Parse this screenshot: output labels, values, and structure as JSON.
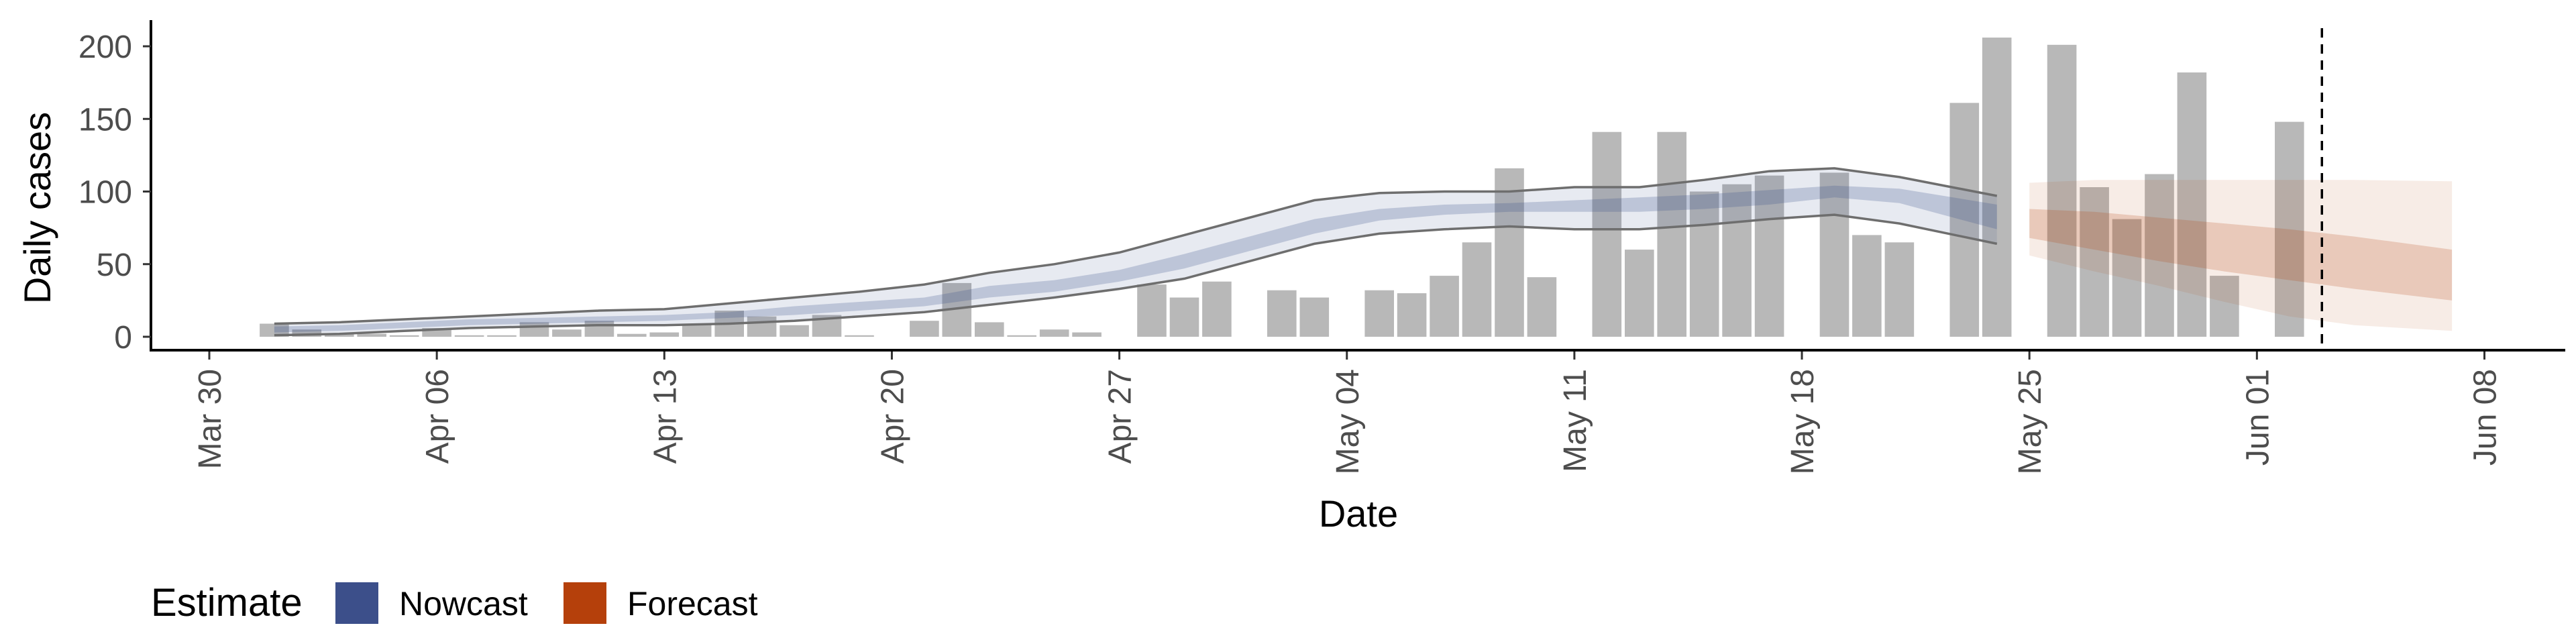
{
  "chart_data": {
    "type": "bar",
    "xlabel": "Date",
    "ylabel": "Daily cases",
    "x_axis": {
      "range": [
        "2020-03-30",
        "2020-06-09"
      ],
      "ticks": [
        {
          "date": "2020-03-30",
          "label": "Mar 30"
        },
        {
          "date": "2020-04-06",
          "label": "Apr 06"
        },
        {
          "date": "2020-04-13",
          "label": "Apr 13"
        },
        {
          "date": "2020-04-20",
          "label": "Apr 20"
        },
        {
          "date": "2020-04-27",
          "label": "Apr 27"
        },
        {
          "date": "2020-05-04",
          "label": "May 04"
        },
        {
          "date": "2020-05-11",
          "label": "May 11"
        },
        {
          "date": "2020-05-18",
          "label": "May 18"
        },
        {
          "date": "2020-05-25",
          "label": "May 25"
        },
        {
          "date": "2020-06-01",
          "label": "Jun 01"
        },
        {
          "date": "2020-06-08",
          "label": "Jun 08"
        }
      ]
    },
    "y_axis": {
      "range": [
        -20,
        220
      ],
      "ticks": [
        0,
        50,
        100,
        150,
        200
      ]
    },
    "grid": false,
    "bars": {
      "dates": [
        "2020-04-01",
        "2020-04-02",
        "2020-04-03",
        "2020-04-04",
        "2020-04-05",
        "2020-04-06",
        "2020-04-07",
        "2020-04-08",
        "2020-04-09",
        "2020-04-10",
        "2020-04-11",
        "2020-04-12",
        "2020-04-13",
        "2020-04-14",
        "2020-04-15",
        "2020-04-16",
        "2020-04-17",
        "2020-04-18",
        "2020-04-19",
        "2020-04-20",
        "2020-04-21",
        "2020-04-22",
        "2020-04-23",
        "2020-04-24",
        "2020-04-25",
        "2020-04-26",
        "2020-04-27",
        "2020-04-28",
        "2020-04-29",
        "2020-04-30",
        "2020-05-01",
        "2020-05-02",
        "2020-05-03",
        "2020-05-04",
        "2020-05-05",
        "2020-05-06",
        "2020-05-07",
        "2020-05-08",
        "2020-05-09",
        "2020-05-10",
        "2020-05-11",
        "2020-05-12",
        "2020-05-13",
        "2020-05-14",
        "2020-05-15",
        "2020-05-16",
        "2020-05-17",
        "2020-05-18",
        "2020-05-19",
        "2020-05-20",
        "2020-05-21",
        "2020-05-22",
        "2020-05-23",
        "2020-05-24",
        "2020-05-25",
        "2020-05-26",
        "2020-05-27",
        "2020-05-28",
        "2020-05-29",
        "2020-05-30",
        "2020-05-31",
        "2020-06-01",
        "2020-06-02",
        "2020-06-03"
      ],
      "values": [
        9,
        5,
        2,
        2,
        1,
        6,
        1,
        1,
        10,
        5,
        11,
        2,
        3,
        9,
        18,
        14,
        8,
        15,
        1,
        0,
        11,
        37,
        10,
        1,
        5,
        3,
        0,
        36,
        27,
        38,
        0,
        32,
        27,
        0,
        32,
        30,
        42,
        65,
        116,
        41,
        0,
        141,
        60,
        141,
        100,
        105,
        111,
        0,
        113,
        70,
        65,
        0,
        161,
        206,
        0,
        201,
        103,
        81,
        112,
        182,
        42,
        0,
        148,
        0
      ]
    },
    "series": [
      {
        "name": "Nowcast",
        "color": "#3c4f8a",
        "dates": [
          "2020-04-01",
          "2020-04-03",
          "2020-04-05",
          "2020-04-07",
          "2020-04-09",
          "2020-04-11",
          "2020-04-13",
          "2020-04-15",
          "2020-04-17",
          "2020-04-19",
          "2020-04-21",
          "2020-04-23",
          "2020-04-25",
          "2020-04-27",
          "2020-04-29",
          "2020-05-01",
          "2020-05-03",
          "2020-05-05",
          "2020-05-07",
          "2020-05-09",
          "2020-05-11",
          "2020-05-13",
          "2020-05-15",
          "2020-05-17",
          "2020-05-19",
          "2020-05-21",
          "2020-05-24"
        ],
        "median": [
          5,
          6,
          8,
          10,
          11,
          12,
          13,
          15,
          18,
          21,
          24,
          31,
          35,
          42,
          52,
          64,
          76,
          84,
          87,
          89,
          90,
          91,
          93,
          96,
          100,
          97,
          82
        ],
        "inner_lower": [
          3,
          4,
          6,
          8,
          9,
          10,
          11,
          13,
          15,
          18,
          21,
          27,
          31,
          38,
          47,
          59,
          71,
          80,
          84,
          86,
          86,
          86,
          88,
          91,
          96,
          92,
          74
        ],
        "inner_upper": [
          7,
          8,
          10,
          12,
          13,
          14,
          15,
          17,
          21,
          24,
          27,
          35,
          39,
          46,
          57,
          69,
          81,
          88,
          91,
          92,
          94,
          96,
          98,
          101,
          104,
          102,
          91
        ],
        "outer_lower": [
          1,
          2,
          4,
          6,
          7,
          8,
          8,
          9,
          11,
          14,
          17,
          22,
          27,
          33,
          40,
          52,
          64,
          71,
          74,
          76,
          74,
          74,
          77,
          81,
          84,
          78,
          64
        ],
        "outer_upper": [
          9,
          10,
          12,
          14,
          16,
          18,
          19,
          23,
          27,
          31,
          36,
          44,
          50,
          58,
          70,
          82,
          94,
          99,
          100,
          100,
          103,
          103,
          108,
          114,
          116,
          110,
          97
        ]
      },
      {
        "name": "Forecast",
        "color": "#b5400b",
        "dates": [
          "2020-05-25",
          "2020-05-27",
          "2020-05-29",
          "2020-05-31",
          "2020-06-02",
          "2020-06-04",
          "2020-06-07"
        ],
        "median": [
          78,
          72,
          66,
          60,
          55,
          51,
          47
        ],
        "inner_lower": [
          68,
          60,
          52,
          45,
          39,
          33,
          25
        ],
        "inner_upper": [
          88,
          86,
          82,
          78,
          74,
          69,
          60
        ],
        "outer_lower": [
          56,
          45,
          35,
          24,
          14,
          8,
          4
        ],
        "outer_upper": [
          106,
          108,
          108,
          108,
          108,
          108,
          107
        ]
      }
    ],
    "vline_date": "2020-06-03",
    "legend": {
      "title": "Estimate",
      "position": "bottom-left",
      "entries": [
        {
          "label": "Nowcast",
          "color": "#3c4f8a"
        },
        {
          "label": "Forecast",
          "color": "#b5400b"
        }
      ]
    }
  }
}
